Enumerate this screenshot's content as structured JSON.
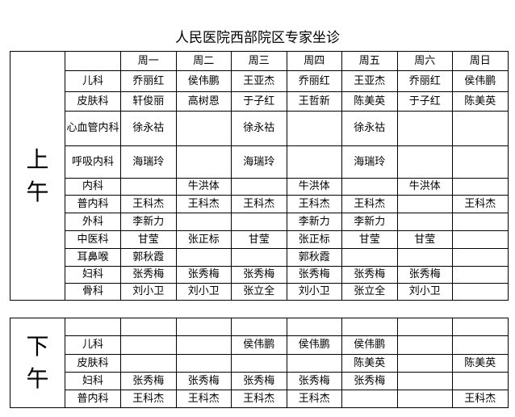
{
  "title": "人民医院西部院区专家坐诊",
  "days": [
    "周一",
    "周二",
    "周三",
    "周四",
    "周五",
    "周六",
    "周日"
  ],
  "morning": {
    "label_1": "上",
    "label_2": "午",
    "rows": [
      {
        "dept": "儿科",
        "cells": [
          "乔丽红",
          "侯伟鹏",
          "王亚杰",
          "乔丽红",
          "王亚杰",
          "乔丽红",
          "侯伟鹏"
        ]
      },
      {
        "dept": "皮肤科",
        "cells": [
          "轩俊丽",
          "高树恩",
          "于子红",
          "王哲新",
          "陈美英",
          "于子红",
          "陈美英"
        ]
      },
      {
        "dept": "心血管内科",
        "cells": [
          "徐永祜",
          "",
          "徐永祜",
          "",
          "徐永祜",
          "",
          ""
        ]
      },
      {
        "dept": "呼吸内科",
        "cells": [
          "海瑞玲",
          "",
          "海瑞玲",
          "",
          "海瑞玲",
          "",
          ""
        ]
      },
      {
        "dept": "内科",
        "cells": [
          "",
          "牛洪体",
          "",
          "牛洪体",
          "",
          "牛洪体",
          ""
        ]
      },
      {
        "dept": "普内科",
        "cells": [
          "王科杰",
          "王科杰",
          "王科杰",
          "王科杰",
          "王科杰",
          "",
          "王科杰"
        ]
      },
      {
        "dept": "外科",
        "cells": [
          "李新力",
          "",
          "",
          "李新力",
          "李新力",
          "",
          ""
        ]
      },
      {
        "dept": "中医科",
        "cells": [
          "甘莹",
          "张正标",
          "甘莹",
          "张正标",
          "甘莹",
          "甘莹",
          ""
        ]
      },
      {
        "dept": "耳鼻喉",
        "cells": [
          "郭秋霞",
          "",
          "",
          "郭秋霞",
          "",
          "",
          ""
        ]
      },
      {
        "dept": "妇科",
        "cells": [
          "张秀梅",
          "张秀梅",
          "张秀梅",
          "张秀梅",
          "张秀梅",
          "张秀梅",
          ""
        ]
      },
      {
        "dept": "骨科",
        "cells": [
          "刘小卫",
          "刘小卫",
          "张立全",
          "刘小卫",
          "张立全",
          "刘小卫",
          ""
        ]
      }
    ]
  },
  "afternoon": {
    "label_1": "下",
    "label_2": "午",
    "rows": [
      {
        "dept": "儿科",
        "cells": [
          "",
          "",
          "侯伟鹏",
          "侯伟鹏",
          "侯伟鹏",
          "",
          ""
        ]
      },
      {
        "dept": "皮肤科",
        "cells": [
          "",
          "",
          "",
          "",
          "陈美英",
          "",
          "陈美英"
        ]
      },
      {
        "dept": "妇科",
        "cells": [
          "张秀梅",
          "张秀梅",
          "张秀梅",
          "张秀梅",
          "张秀梅",
          "",
          ""
        ]
      },
      {
        "dept": "普内科",
        "cells": [
          "王科杰",
          "王科杰",
          "王科杰",
          "王科杰",
          "",
          "",
          "王科杰"
        ]
      }
    ]
  }
}
